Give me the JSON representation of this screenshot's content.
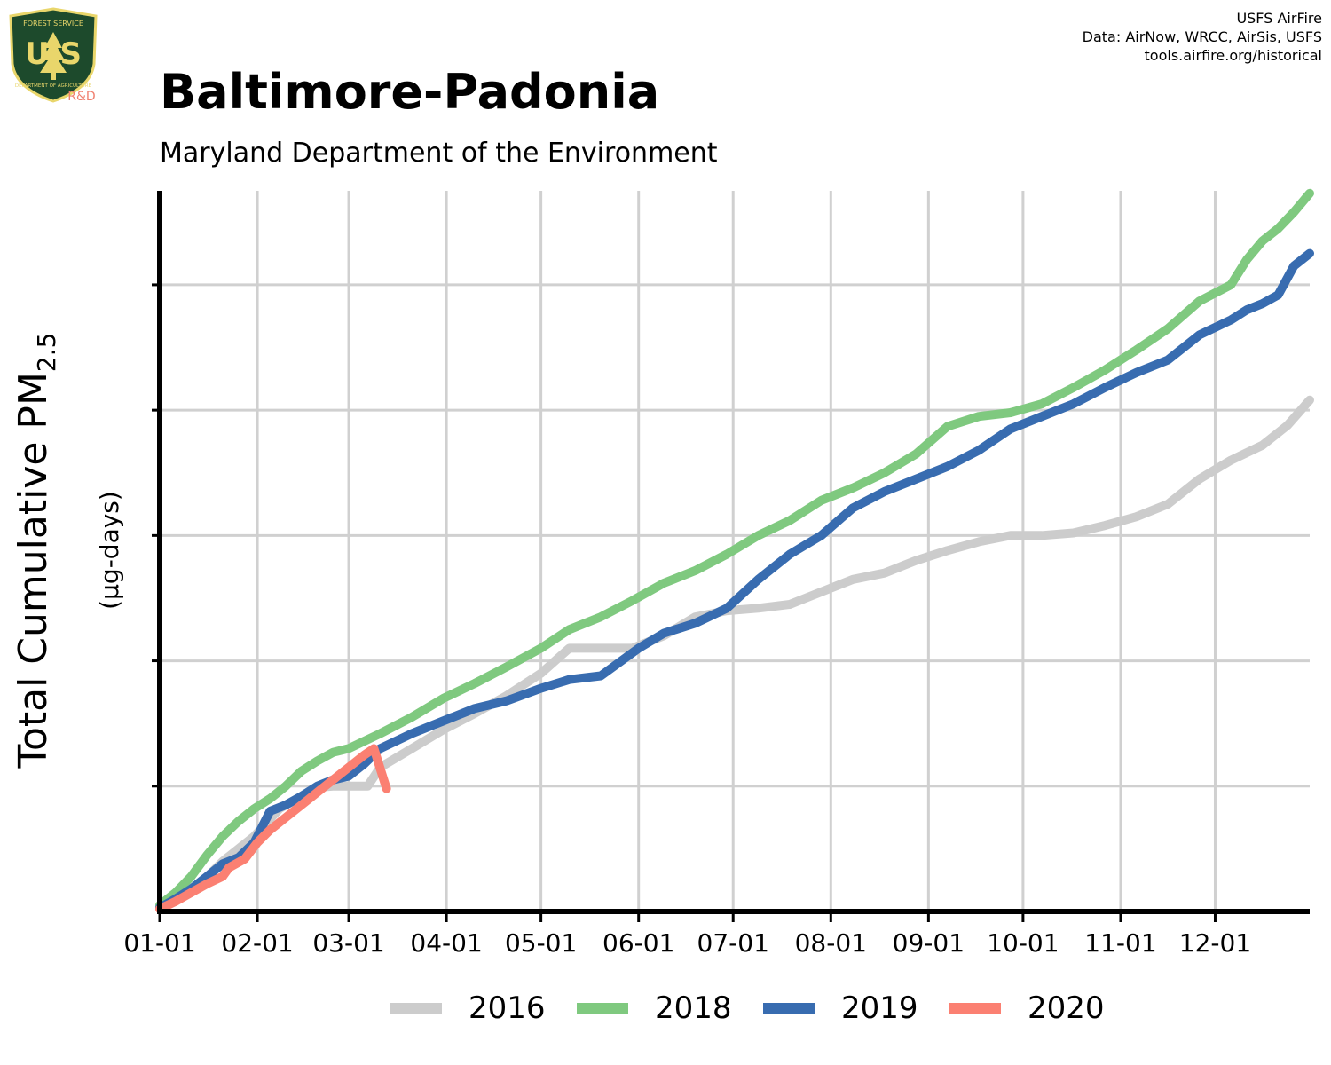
{
  "header": {
    "title": "Baltimore-Padonia",
    "subtitle": "Maryland Department of the Environment",
    "credits": [
      "USFS AirFire",
      "Data: AirNow, WRCC, AirSis, USFS",
      "tools.airfire.org/historical"
    ],
    "logo": {
      "top_text": "FOREST SERVICE",
      "letters": "U S",
      "bottom_text": "DEPARTMENT OF AGRICULTURE",
      "tag": "R&D"
    }
  },
  "colors": {
    "2016": "#cccccc",
    "2018": "#7fc97f",
    "2019": "#386cb0",
    "2020": "#fb8072",
    "grid": "#d0d0d0",
    "axis": "#000000"
  },
  "chart_data": {
    "type": "line",
    "ylabel_main": "Total Cumulative PM",
    "ylabel_sub": "2.5",
    "ylabel_units": "(µg-days)",
    "xlabel": "",
    "x_ticks": [
      "01-01",
      "02-01",
      "03-01",
      "04-01",
      "05-01",
      "06-01",
      "07-01",
      "08-01",
      "09-01",
      "10-01",
      "11-01",
      "12-01"
    ],
    "x_tick_days": [
      0,
      31,
      60,
      91,
      121,
      152,
      182,
      213,
      244,
      274,
      305,
      335
    ],
    "xlim": [
      0,
      365
    ],
    "y_gridlines": [
      1,
      2,
      3,
      4,
      5
    ],
    "ylim": [
      0,
      5.75
    ],
    "y_tick_labels_shown": false,
    "grid": true,
    "legend_position": "bottom",
    "series": [
      {
        "name": "2016",
        "x": [
          0,
          10,
          20,
          30,
          38,
          45,
          50,
          55,
          60,
          66,
          70,
          80,
          90,
          100,
          110,
          121,
          130,
          140,
          150,
          160,
          170,
          180,
          190,
          200,
          210,
          220,
          230,
          240,
          250,
          260,
          270,
          280,
          290,
          300,
          310,
          320,
          330,
          340,
          350,
          358,
          365
        ],
        "y": [
          0.03,
          0.15,
          0.4,
          0.6,
          0.82,
          0.92,
          0.99,
          1.0,
          1.0,
          1.0,
          1.15,
          1.3,
          1.45,
          1.58,
          1.72,
          1.9,
          2.1,
          2.1,
          2.1,
          2.2,
          2.35,
          2.4,
          2.42,
          2.45,
          2.55,
          2.65,
          2.7,
          2.8,
          2.88,
          2.95,
          3.0,
          3.0,
          3.02,
          3.08,
          3.15,
          3.25,
          3.45,
          3.6,
          3.72,
          3.88,
          4.08
        ]
      },
      {
        "name": "2018",
        "x": [
          0,
          5,
          10,
          15,
          20,
          25,
          30,
          35,
          40,
          45,
          50,
          55,
          60,
          70,
          80,
          90,
          100,
          110,
          121,
          130,
          140,
          150,
          160,
          170,
          180,
          190,
          200,
          210,
          220,
          230,
          240,
          250,
          260,
          270,
          280,
          290,
          300,
          310,
          320,
          330,
          340,
          345,
          350,
          355,
          360,
          365
        ],
        "y": [
          0.05,
          0.15,
          0.28,
          0.45,
          0.6,
          0.72,
          0.82,
          0.9,
          1.0,
          1.12,
          1.2,
          1.27,
          1.3,
          1.42,
          1.55,
          1.7,
          1.82,
          1.95,
          2.1,
          2.25,
          2.35,
          2.48,
          2.62,
          2.72,
          2.85,
          3.0,
          3.12,
          3.28,
          3.38,
          3.5,
          3.65,
          3.87,
          3.95,
          3.98,
          4.05,
          4.18,
          4.32,
          4.48,
          4.65,
          4.87,
          5.0,
          5.2,
          5.35,
          5.45,
          5.58,
          5.73
        ]
      },
      {
        "name": "2019",
        "x": [
          0,
          5,
          10,
          15,
          20,
          25,
          30,
          35,
          40,
          45,
          50,
          55,
          60,
          65,
          70,
          80,
          90,
          100,
          110,
          121,
          130,
          140,
          152,
          160,
          170,
          180,
          190,
          200,
          210,
          220,
          230,
          240,
          250,
          260,
          270,
          280,
          290,
          300,
          310,
          320,
          330,
          340,
          345,
          350,
          355,
          360,
          365
        ],
        "y": [
          0.03,
          0.1,
          0.18,
          0.28,
          0.38,
          0.43,
          0.55,
          0.8,
          0.85,
          0.92,
          1.0,
          1.05,
          1.08,
          1.18,
          1.3,
          1.42,
          1.52,
          1.62,
          1.68,
          1.78,
          1.85,
          1.88,
          2.1,
          2.22,
          2.3,
          2.42,
          2.65,
          2.85,
          3.0,
          3.22,
          3.35,
          3.45,
          3.55,
          3.68,
          3.85,
          3.95,
          4.05,
          4.18,
          4.3,
          4.4,
          4.6,
          4.72,
          4.8,
          4.85,
          4.92,
          5.15,
          5.25
        ]
      },
      {
        "name": "2020",
        "x": [
          0,
          5,
          10,
          15,
          20,
          22,
          27,
          31,
          35,
          40,
          45,
          50,
          55,
          60,
          65,
          68,
          72
        ],
        "y": [
          0.02,
          0.08,
          0.15,
          0.22,
          0.28,
          0.35,
          0.42,
          0.55,
          0.65,
          0.75,
          0.85,
          0.95,
          1.05,
          1.15,
          1.25,
          1.3,
          0.98
        ]
      }
    ]
  }
}
